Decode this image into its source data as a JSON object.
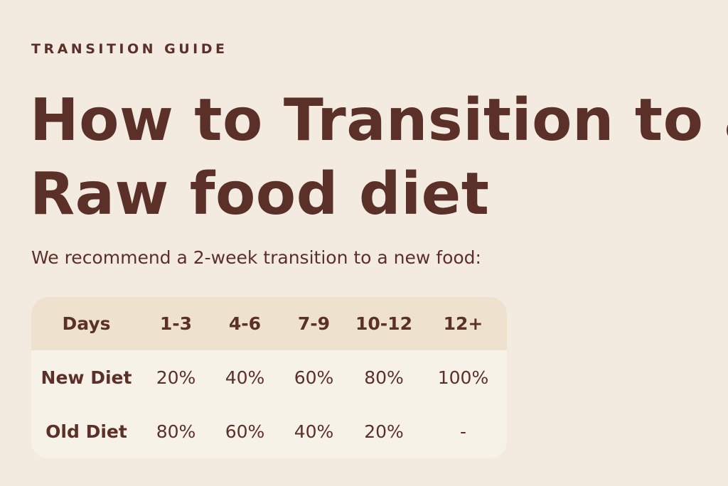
{
  "eyebrow": "TRANSITION GUIDE",
  "title_lines": [
    "How to Transition to a",
    "Raw food diet"
  ],
  "intro": "We recommend a 2-week transition to a new food:",
  "table": {
    "header": [
      "Days",
      "1-3",
      "4-6",
      "7-9",
      "10-12",
      "12+"
    ],
    "rows": [
      [
        "New Diet",
        "20%",
        "40%",
        "60%",
        "80%",
        "100%"
      ],
      [
        "Old Diet",
        "80%",
        "60%",
        "40%",
        "20%",
        "-"
      ]
    ]
  }
}
